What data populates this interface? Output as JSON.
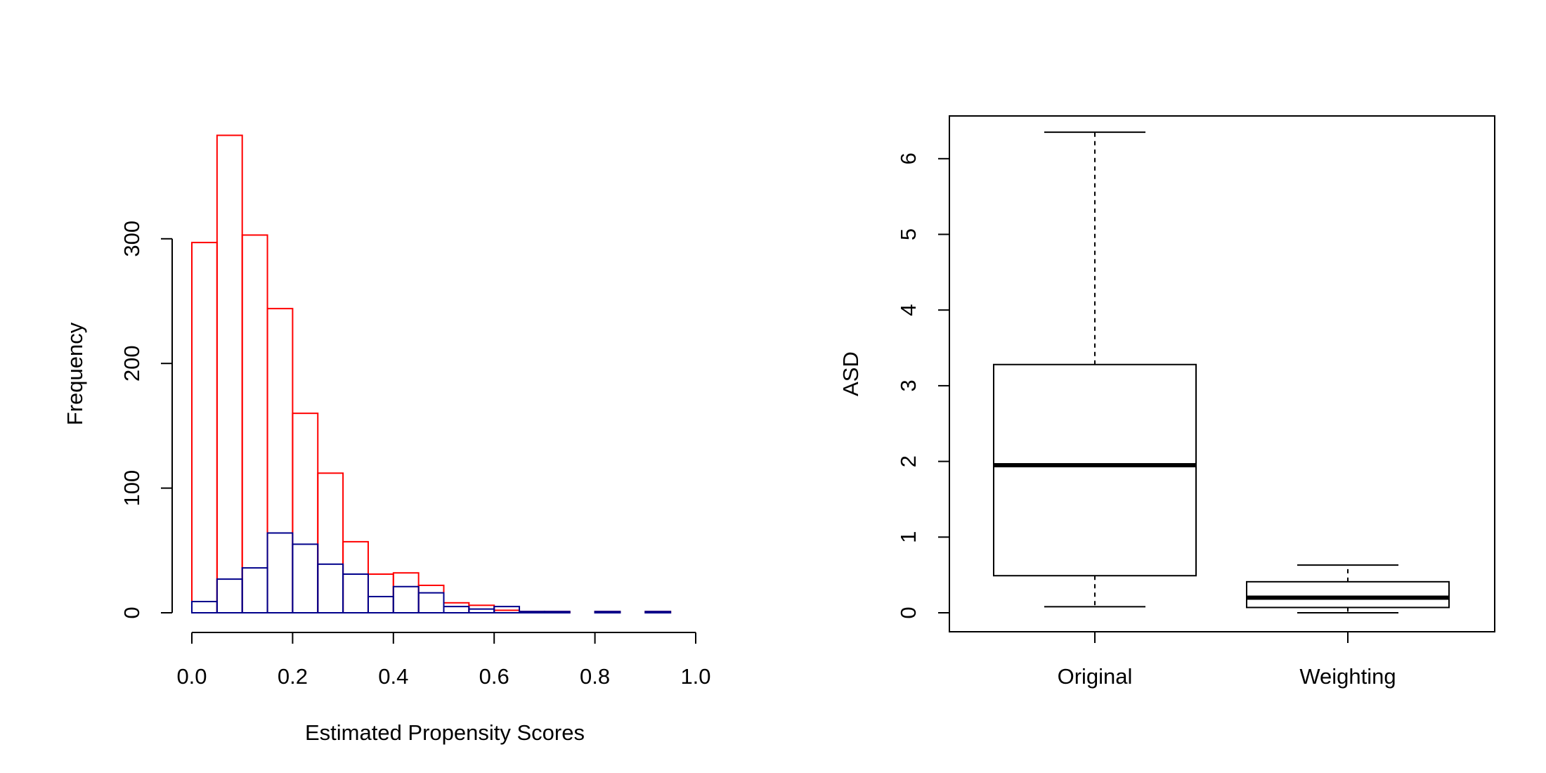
{
  "chart_data": [
    {
      "type": "histogram",
      "xlabel": "Estimated Propensity Scores",
      "ylabel": "Frequency",
      "xlim": [
        0.0,
        1.0
      ],
      "ylim": [
        0,
        400
      ],
      "x_ticks": [
        "0.0",
        "0.2",
        "0.4",
        "0.6",
        "0.8",
        "1.0"
      ],
      "y_ticks": [
        "0",
        "100",
        "200",
        "300"
      ],
      "bin_edges": [
        0.0,
        0.05,
        0.1,
        0.15,
        0.2,
        0.25,
        0.3,
        0.35,
        0.4,
        0.45,
        0.5,
        0.55,
        0.6,
        0.65,
        0.7,
        0.75,
        0.8,
        0.85,
        0.9,
        0.95
      ],
      "series": [
        {
          "color": "#ff0000",
          "values": [
            297,
            383,
            303,
            244,
            160,
            112,
            57,
            31,
            32,
            22,
            8,
            6,
            2,
            1,
            1,
            0,
            1,
            0,
            1
          ]
        },
        {
          "color": "#00008b",
          "values": [
            9,
            27,
            36,
            64,
            55,
            39,
            31,
            13,
            21,
            16,
            5,
            3,
            5,
            1,
            1,
            0,
            1,
            0,
            1
          ]
        }
      ],
      "grid": false
    },
    {
      "type": "boxplot",
      "ylabel": "ASD",
      "ylim": [
        0,
        6.3
      ],
      "y_ticks": [
        "0",
        "1",
        "2",
        "3",
        "4",
        "5",
        "6"
      ],
      "categories": [
        "Original",
        "Weighting"
      ],
      "boxes": [
        {
          "whisker_low": 0.08,
          "q1": 0.49,
          "median": 1.95,
          "q3": 3.28,
          "whisker_high": 6.35
        },
        {
          "whisker_low": 0.0,
          "q1": 0.07,
          "median": 0.2,
          "q3": 0.41,
          "whisker_high": 0.63
        }
      ],
      "grid": false
    }
  ]
}
